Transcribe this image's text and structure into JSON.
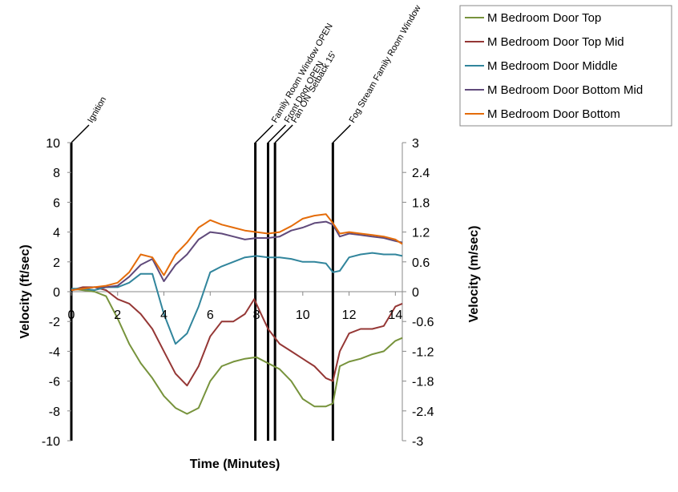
{
  "chart_data": {
    "type": "line",
    "xlabel": "Time (Minutes)",
    "ylabel": "Velocity (ft/sec)",
    "y2label": "Velocity (m/sec)",
    "xlim": [
      0,
      14.3
    ],
    "ylim": [
      -10,
      10
    ],
    "y2lim": [
      -3,
      3
    ],
    "x_ticks": [
      "0",
      "2",
      "4",
      "6",
      "8",
      "10",
      "12",
      "14"
    ],
    "y_ticks": [
      "10",
      "8",
      "6",
      "4",
      "2",
      "0",
      "-2",
      "-4",
      "-6",
      "-8",
      "-10"
    ],
    "y2_ticks": [
      "3",
      "2.4",
      "1.8",
      "1.2",
      "0.6",
      "0",
      "-0.6",
      "-1.2",
      "-1.8",
      "-2.4",
      "-3"
    ],
    "legend_position": "top-right",
    "grid": false,
    "events": [
      {
        "time": 0,
        "label": "Ignition"
      },
      {
        "time": 7.95,
        "label": "Family Room Window OPEN"
      },
      {
        "time": 8.5,
        "label": "Front Door OPEN"
      },
      {
        "time": 8.8,
        "label": "Fan ON  'Setback 15'"
      },
      {
        "time": 11.3,
        "label": "Fog Stream Family Room Window"
      }
    ],
    "series": [
      {
        "name": "M Bedroom Door Top",
        "color": "#77933C",
        "x": [
          0,
          0.5,
          1,
          1.5,
          2,
          2.5,
          3,
          3.5,
          4,
          4.5,
          5,
          5.5,
          6,
          6.5,
          7,
          7.5,
          8,
          8.5,
          9,
          9.5,
          10,
          10.5,
          11,
          11.3,
          11.6,
          12,
          12.5,
          13,
          13.5,
          14,
          14.3
        ],
        "y": [
          0.2,
          0.1,
          0,
          -0.3,
          -1.8,
          -3.5,
          -4.8,
          -5.8,
          -7,
          -7.8,
          -8.2,
          -7.8,
          -6,
          -5,
          -4.7,
          -4.5,
          -4.4,
          -4.8,
          -5.2,
          -6,
          -7.2,
          -7.7,
          -7.7,
          -7.5,
          -5,
          -4.7,
          -4.5,
          -4.2,
          -4,
          -3.3,
          -3.1
        ]
      },
      {
        "name": "M Bedroom Door Top Mid",
        "color": "#953735",
        "x": [
          0,
          0.5,
          1,
          1.5,
          2,
          2.5,
          3,
          3.5,
          4,
          4.5,
          5,
          5.5,
          6,
          6.5,
          7,
          7.5,
          7.9,
          8.2,
          8.5,
          9,
          9.5,
          10,
          10.5,
          11,
          11.3,
          11.6,
          12,
          12.5,
          13,
          13.5,
          14,
          14.3
        ],
        "y": [
          0.1,
          0.3,
          0.3,
          0.1,
          -0.5,
          -0.8,
          -1.5,
          -2.5,
          -4,
          -5.5,
          -6.3,
          -5,
          -3,
          -2,
          -2,
          -1.5,
          -0.5,
          -1.5,
          -2.5,
          -3.5,
          -4,
          -4.5,
          -5,
          -5.8,
          -6,
          -4,
          -2.8,
          -2.5,
          -2.5,
          -2.3,
          -1,
          -0.8
        ]
      },
      {
        "name": "M Bedroom Door Middle",
        "color": "#31859C",
        "x": [
          0,
          0.5,
          1,
          1.5,
          2,
          2.5,
          3,
          3.5,
          4,
          4.5,
          5,
          5.5,
          6,
          6.5,
          7,
          7.5,
          8,
          8.5,
          9,
          9.5,
          10,
          10.5,
          11,
          11.3,
          11.6,
          12,
          12.5,
          13,
          13.5,
          14,
          14.3
        ],
        "y": [
          0.2,
          0.2,
          0.1,
          0.3,
          0.3,
          0.6,
          1.2,
          1.2,
          -1.5,
          -3.5,
          -2.8,
          -1,
          1.3,
          1.7,
          2,
          2.3,
          2.4,
          2.3,
          2.3,
          2.2,
          2,
          2,
          1.9,
          1.3,
          1.4,
          2.3,
          2.5,
          2.6,
          2.5,
          2.5,
          2.4
        ]
      },
      {
        "name": "M Bedroom Door Bottom Mid",
        "color": "#604A7B",
        "x": [
          0,
          0.5,
          1,
          1.5,
          2,
          2.5,
          3,
          3.5,
          4,
          4.5,
          5,
          5.5,
          6,
          6.5,
          7,
          7.5,
          8,
          8.5,
          9,
          9.5,
          10,
          10.5,
          11,
          11.3,
          11.6,
          12,
          12.5,
          13,
          13.5,
          14,
          14.3
        ],
        "y": [
          0.1,
          0.2,
          0.3,
          0.3,
          0.4,
          1,
          1.8,
          2.2,
          0.7,
          1.8,
          2.5,
          3.5,
          4,
          3.9,
          3.7,
          3.5,
          3.6,
          3.6,
          3.7,
          4.1,
          4.3,
          4.6,
          4.7,
          4.5,
          3.7,
          3.9,
          3.8,
          3.7,
          3.6,
          3.4,
          3.3
        ]
      },
      {
        "name": "M Bedroom Door Bottom",
        "color": "#E46C0A",
        "x": [
          0,
          0.5,
          1,
          1.5,
          2,
          2.5,
          3,
          3.5,
          4,
          4.5,
          5,
          5.5,
          6,
          6.5,
          7,
          7.5,
          8,
          8.5,
          9,
          9.5,
          10,
          10.5,
          11,
          11.3,
          11.6,
          12,
          12.5,
          13,
          13.5,
          14,
          14.3
        ],
        "y": [
          0.1,
          0.2,
          0.3,
          0.4,
          0.6,
          1.3,
          2.5,
          2.3,
          1.1,
          2.5,
          3.3,
          4.3,
          4.8,
          4.5,
          4.3,
          4.1,
          4,
          3.9,
          4,
          4.4,
          4.9,
          5.1,
          5.2,
          4.6,
          3.9,
          4,
          3.9,
          3.8,
          3.7,
          3.5,
          3.2
        ]
      }
    ]
  }
}
